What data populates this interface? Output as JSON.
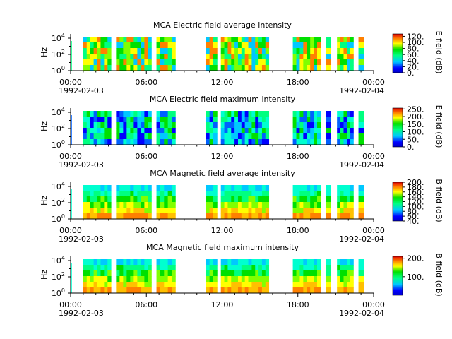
{
  "chart_data": [
    {
      "type": "heatmap",
      "title": "MCA  Electric field average intensity",
      "ylabel": "Hz",
      "y_ticks": [
        "10^0",
        "10^2",
        "10^4"
      ],
      "y_scale": "log",
      "x_ticks": [
        "00:00",
        "06:00",
        "12:00",
        "18:00",
        "00:00"
      ],
      "x_dates": [
        "1992-02-03",
        "1992-02-04"
      ],
      "colorbar_label": "E field (dB)",
      "colorbar_ticks": [
        "0.",
        "20.",
        "40.",
        "60.",
        "80.",
        "100.",
        "120."
      ],
      "colorbar_range": [
        0,
        128
      ],
      "data_gaps_hours": [
        [
          0.1,
          1.0
        ],
        [
          3.2,
          3.6
        ],
        [
          6.4,
          6.8
        ],
        [
          8.3,
          10.7
        ],
        [
          11.6,
          11.9
        ],
        [
          15.7,
          17.6
        ],
        [
          19.8,
          20.2
        ],
        [
          20.6,
          21.1
        ],
        [
          22.4,
          22.8
        ]
      ]
    },
    {
      "type": "heatmap",
      "title": "MCA  Electric field maximum intensity",
      "ylabel": "Hz",
      "y_ticks": [
        "10^0",
        "10^2",
        "10^4"
      ],
      "y_scale": "log",
      "x_ticks": [
        "00:00",
        "06:00",
        "12:00",
        "18:00",
        "00:00"
      ],
      "x_dates": [
        "1992-02-03",
        "1992-02-04"
      ],
      "colorbar_label": "E field (dB)",
      "colorbar_ticks": [
        "0.",
        "50.",
        "100.",
        "150.",
        "200.",
        "250."
      ],
      "colorbar_range": [
        0,
        256
      ]
    },
    {
      "type": "heatmap",
      "title": "MCA  Magnetic field average intensity",
      "ylabel": "Hz",
      "y_ticks": [
        "10^0",
        "10^2",
        "10^4"
      ],
      "y_scale": "log",
      "x_ticks": [
        "00:00",
        "06:00",
        "12:00",
        "18:00",
        "00:00"
      ],
      "x_dates": [
        "1992-02-03",
        "1992-02-04"
      ],
      "colorbar_label": "B field (dB)",
      "colorbar_ticks": [
        "40.",
        "60.",
        "80.",
        "100.",
        "120.",
        "140.",
        "160.",
        "180.",
        "200."
      ],
      "colorbar_range": [
        40,
        200
      ]
    },
    {
      "type": "heatmap",
      "title": "MCA  Magnetic field maximum intensity",
      "ylabel": "Hz",
      "y_ticks": [
        "10^0",
        "10^2",
        "10^4"
      ],
      "y_scale": "log",
      "x_ticks": [
        "00:00",
        "06:00",
        "12:00",
        "18:00",
        "00:00"
      ],
      "x_dates": [
        "1992-02-03",
        "1992-02-04"
      ],
      "colorbar_label": "B field (dB)",
      "colorbar_ticks": [
        "100.",
        "200."
      ],
      "colorbar_range": [
        0,
        210
      ]
    }
  ]
}
